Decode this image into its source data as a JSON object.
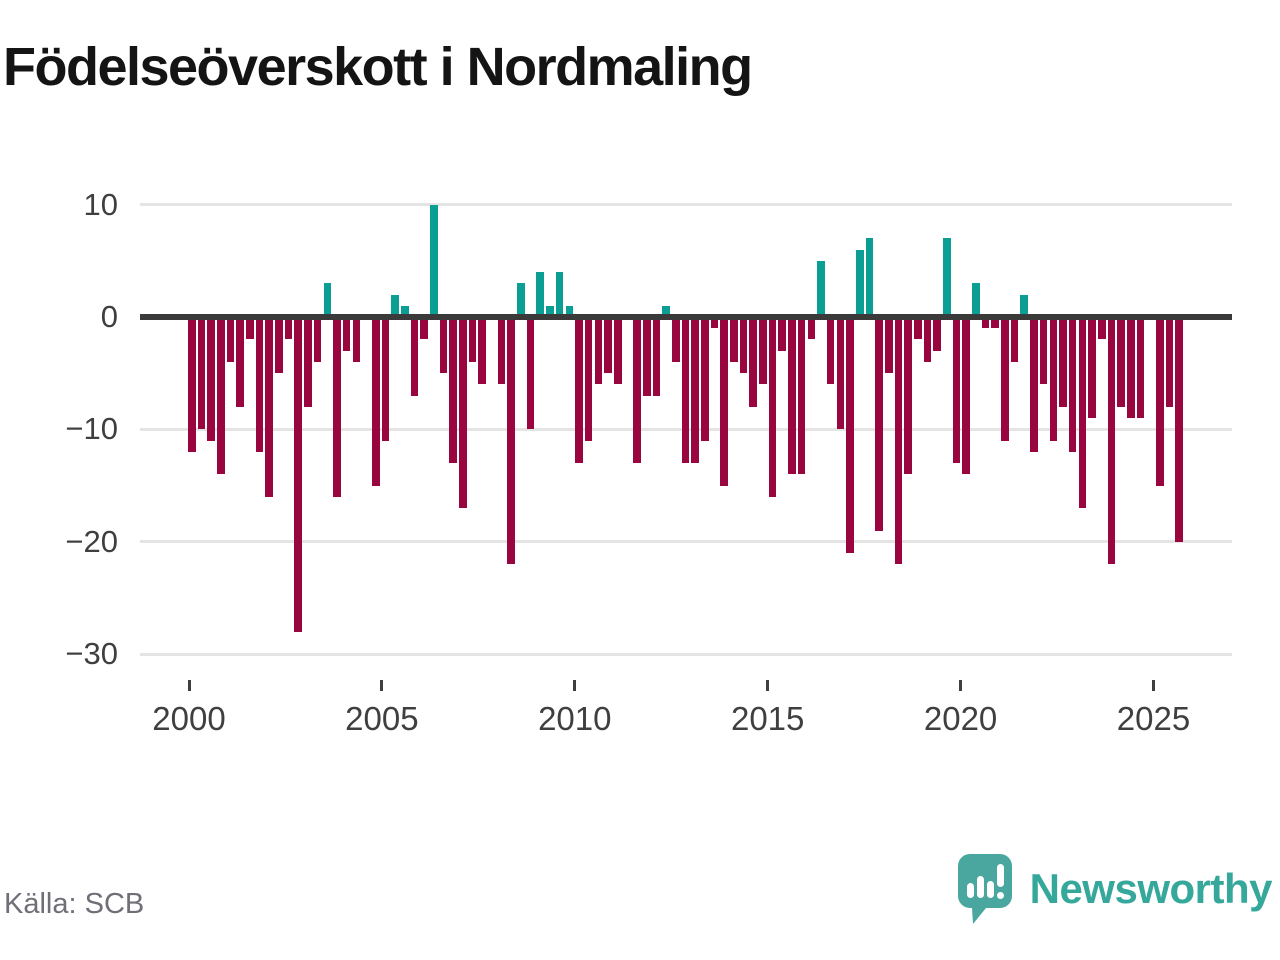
{
  "title": "Födelseöverskott i Nordmaling",
  "source": "Källa: SCB",
  "brand": {
    "name": "Newsworthy"
  },
  "colors": {
    "positive_bar": "#0b9e94",
    "negative_bar": "#98053f",
    "zero_axis": "#3a3a3a",
    "gridline": "#e4e4e4",
    "brand_teal": "#35a89b",
    "logo_bubble": "#4aa79f"
  },
  "chart_data": {
    "type": "bar",
    "title": "Födelseöverskott i Nordmaling",
    "frequency": "quarterly",
    "start_period": "2000-Q1",
    "end_period": "2025-Q3",
    "xlabel": "",
    "ylabel": "",
    "ylim": [
      -30,
      10
    ],
    "grid": true,
    "legend": false,
    "y_ticks": [
      10,
      0,
      -10,
      -20,
      -30
    ],
    "y_tick_labels": [
      "10",
      "0",
      "−10",
      "−20",
      "−30"
    ],
    "x_tick_labels": [
      "2000",
      "2005",
      "2010",
      "2015",
      "2020",
      "2025"
    ],
    "series": [
      {
        "name": "Födelseöverskott",
        "values": [
          -12,
          -10,
          -11,
          -14,
          -4,
          -8,
          -2,
          -12,
          -16,
          -5,
          -2,
          -28,
          -8,
          -4,
          3,
          -16,
          -3,
          -4,
          0,
          -15,
          -11,
          2,
          1,
          -7,
          -2,
          10,
          -5,
          -13,
          -17,
          -4,
          -6,
          0,
          -6,
          -22,
          3,
          -10,
          4,
          1,
          4,
          1,
          -13,
          -11,
          -6,
          -5,
          -6,
          0,
          -13,
          -7,
          -7,
          1,
          -4,
          -13,
          -13,
          -11,
          -1,
          -15,
          -4,
          -5,
          -8,
          -6,
          -16,
          -3,
          -14,
          -14,
          -2,
          5,
          -6,
          -10,
          -21,
          6,
          7,
          -19,
          -5,
          -22,
          -14,
          -2,
          -4,
          -3,
          7,
          -13,
          -14,
          3,
          -1,
          -1,
          -11,
          -4,
          2,
          -12,
          -6,
          -11,
          -8,
          -12,
          -17,
          -9,
          -2,
          -22,
          -8,
          -9,
          -9,
          0,
          -15,
          -8,
          -20
        ]
      }
    ]
  }
}
